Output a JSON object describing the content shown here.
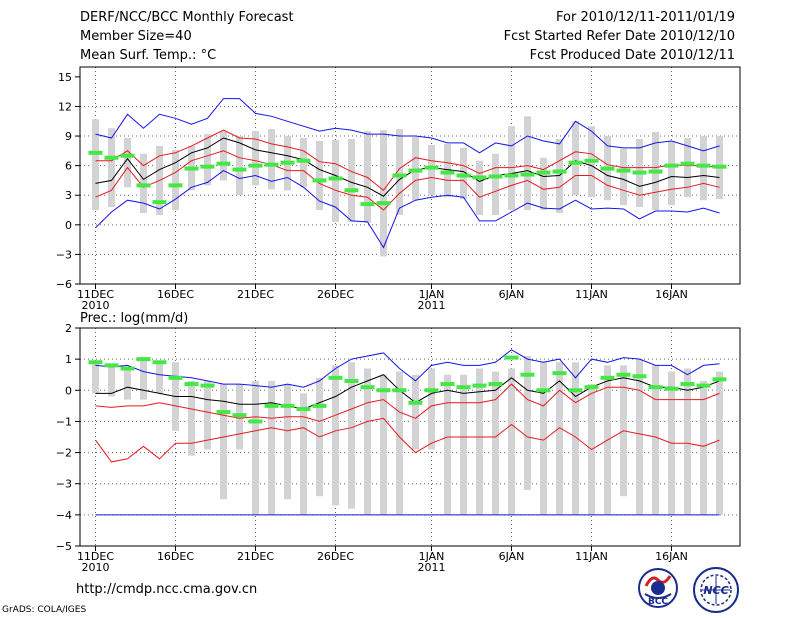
{
  "header": {
    "title": "DERF/NCC/BCC Monthly Forecast",
    "member": "Member Size=40",
    "variable": "Mean Surf. Temp.: °C",
    "period": "For 2010/12/11-2011/01/19",
    "started": "Fcst Started Refer Date 2010/12/10",
    "produced": "Fcst Produced Date 2010/12/11"
  },
  "footer": {
    "url": "http://cmdp.ncc.cma.gov.cn",
    "grads": "GrADS: COLA/IGES"
  },
  "logos": {
    "bcc": "BCC",
    "ncc": "NCC"
  },
  "colors": {
    "box": "#d3d3d5",
    "mean": "#000000",
    "inner": "#e8191f",
    "outer": "#1414e6",
    "obs": "#44e844",
    "grid": "#666666"
  },
  "chart_data": [
    {
      "type": "line",
      "name": "temperature",
      "title": "Mean Surf. Temp.: °C",
      "ylim": [
        -6,
        16
      ],
      "yticks": [
        "−6",
        "−3",
        "0",
        "3",
        "6",
        "9",
        "12",
        "15"
      ],
      "xtick_days": [
        1,
        6,
        11,
        16,
        22,
        27,
        32,
        37
      ],
      "xtick_labels": [
        "11DEC",
        "16DEC",
        "21DEC",
        "26DEC",
        "1JAN",
        "6JAN",
        "11JAN",
        "16JAN"
      ],
      "xtick_years": [
        "2010",
        "",
        "",
        "",
        "2011",
        "",
        "",
        ""
      ],
      "days": [
        1,
        2,
        3,
        4,
        5,
        6,
        7,
        8,
        9,
        10,
        11,
        12,
        13,
        14,
        15,
        16,
        17,
        18,
        19,
        20,
        21,
        22,
        23,
        24,
        25,
        26,
        27,
        28,
        29,
        30,
        31,
        32,
        33,
        34,
        35,
        36,
        37,
        38,
        39,
        40
      ],
      "box_low": [
        1.5,
        1.8,
        3.8,
        1.2,
        1.0,
        1.5,
        3.5,
        4.0,
        4.5,
        3.0,
        4.0,
        3.6,
        3.5,
        3.8,
        1.5,
        0.3,
        0.3,
        0.2,
        -3.2,
        1.0,
        2.5,
        3.0,
        2.8,
        2.6,
        1.0,
        1.0,
        1.5,
        1.5,
        1.5,
        1.2,
        3.0,
        2.8,
        2.5,
        2.0,
        1.8,
        1.5,
        2.0,
        2.8,
        2.5,
        2.6
      ],
      "box_high": [
        10.7,
        9.8,
        8.8,
        7.2,
        8.0,
        7.6,
        8.0,
        9.2,
        9.5,
        9.0,
        9.5,
        9.7,
        9.0,
        8.8,
        8.5,
        8.6,
        8.7,
        9.5,
        9.6,
        9.7,
        8.9,
        8.1,
        8.2,
        7.8,
        6.5,
        7.2,
        10.0,
        11.0,
        6.8,
        8.7,
        10.5,
        10.0,
        9.0,
        7.7,
        8.7,
        9.4,
        8.5,
        8.8,
        9.0,
        9.0
      ],
      "obs": [
        7.3,
        6.8,
        7.0,
        4.0,
        2.3,
        4.0,
        5.7,
        5.9,
        6.2,
        5.6,
        6.0,
        6.1,
        6.3,
        6.5,
        4.5,
        4.7,
        3.5,
        2.1,
        2.2,
        5.0,
        5.5,
        5.8,
        5.3,
        5.0,
        4.8,
        4.9,
        5.0,
        5.1,
        5.3,
        5.4,
        6.3,
        6.5,
        5.7,
        5.5,
        5.3,
        5.4,
        6.0,
        6.2,
        6.0,
        5.9
      ],
      "series": [
        {
          "name": "max",
          "color": "#1414e6",
          "values": [
            9.2,
            8.8,
            11.2,
            9.8,
            11.2,
            10.8,
            10.2,
            10.8,
            12.8,
            12.8,
            11.3,
            11.0,
            10.5,
            10.0,
            9.5,
            9.8,
            9.6,
            9.2,
            9.2,
            9.0,
            9.0,
            8.8,
            8.3,
            8.3,
            7.3,
            8.3,
            8.0,
            9.0,
            8.5,
            8.2,
            10.5,
            9.5,
            8.0,
            7.8,
            7.8,
            8.3,
            8.5,
            8.0,
            7.5,
            8.0
          ]
        },
        {
          "name": "q_high",
          "color": "#e8191f",
          "values": [
            6.5,
            6.5,
            7.5,
            6.0,
            7.0,
            7.3,
            8.0,
            8.8,
            9.6,
            8.8,
            8.7,
            8.2,
            7.9,
            7.5,
            6.4,
            6.2,
            5.4,
            4.8,
            3.5,
            5.7,
            6.8,
            6.5,
            6.3,
            6.0,
            5.2,
            5.8,
            5.8,
            6.0,
            5.6,
            6.5,
            7.4,
            7.2,
            6.1,
            5.8,
            5.8,
            5.8,
            6.1,
            6.0,
            6.0,
            5.8
          ]
        },
        {
          "name": "mean",
          "color": "#000000",
          "values": [
            4.2,
            4.5,
            6.7,
            4.6,
            5.6,
            6.3,
            7.3,
            7.8,
            8.8,
            8.3,
            7.6,
            7.3,
            7.0,
            6.6,
            5.6,
            5.0,
            4.3,
            3.8,
            2.9,
            4.6,
            5.6,
            5.8,
            5.6,
            5.4,
            4.4,
            5.0,
            5.2,
            5.5,
            4.9,
            5.0,
            6.5,
            6.0,
            5.0,
            4.6,
            3.9,
            4.3,
            4.9,
            4.8,
            5.0,
            4.8
          ]
        },
        {
          "name": "q_low",
          "color": "#e8191f",
          "values": [
            2.8,
            3.5,
            5.8,
            3.8,
            4.5,
            5.3,
            6.5,
            7.0,
            7.5,
            6.8,
            6.5,
            6.1,
            5.5,
            5.5,
            4.2,
            3.5,
            3.0,
            2.8,
            1.5,
            3.2,
            4.5,
            4.8,
            4.5,
            4.5,
            2.8,
            3.4,
            4.0,
            4.5,
            3.6,
            3.8,
            5.0,
            5.0,
            4.0,
            3.5,
            3.0,
            3.3,
            3.6,
            3.8,
            4.2,
            3.8
          ]
        },
        {
          "name": "min",
          "color": "#1414e6",
          "values": [
            -0.3,
            1.3,
            2.5,
            2.2,
            1.6,
            2.6,
            3.8,
            4.3,
            5.5,
            4.7,
            5.0,
            4.4,
            4.8,
            3.8,
            2.4,
            1.8,
            0.4,
            0.3,
            -2.3,
            1.7,
            2.5,
            2.8,
            3.0,
            2.8,
            0.4,
            0.4,
            1.3,
            2.2,
            1.7,
            1.6,
            2.5,
            1.6,
            1.7,
            1.6,
            0.6,
            1.4,
            1.4,
            1.3,
            1.7,
            1.2
          ]
        }
      ]
    },
    {
      "type": "line",
      "name": "precipitation",
      "title": "Prec.: log(mm/d)",
      "ylim": [
        -5,
        2
      ],
      "yticks": [
        "−5",
        "−4",
        "−3",
        "−2",
        "−1",
        "0",
        "1",
        "2"
      ],
      "xtick_days": [
        1,
        6,
        11,
        16,
        22,
        27,
        32,
        37
      ],
      "xtick_labels": [
        "11DEC",
        "16DEC",
        "21DEC",
        "26DEC",
        "1JAN",
        "6JAN",
        "11JAN",
        "16JAN"
      ],
      "xtick_years": [
        "2010",
        "",
        "",
        "",
        "2011",
        "",
        "",
        ""
      ],
      "days": [
        1,
        2,
        3,
        4,
        5,
        6,
        7,
        8,
        9,
        10,
        11,
        12,
        13,
        14,
        15,
        16,
        17,
        18,
        19,
        20,
        21,
        22,
        23,
        24,
        25,
        26,
        27,
        28,
        29,
        30,
        31,
        32,
        33,
        34,
        35,
        36,
        37,
        38,
        39,
        40
      ],
      "box_low": [
        -0.1,
        -0.2,
        -0.3,
        -0.3,
        -0.1,
        -1.3,
        -2.1,
        -1.9,
        -3.5,
        -1.9,
        -4.0,
        -4.0,
        -3.5,
        -4.0,
        -3.4,
        -3.7,
        -3.8,
        -4.0,
        -4.0,
        -4.0,
        -1.9,
        -1.9,
        -4.0,
        -4.0,
        -4.0,
        -4.0,
        -4.0,
        -3.2,
        -4.0,
        -4.0,
        -4.0,
        -4.0,
        -4.0,
        -3.4,
        -4.0,
        -4.0,
        -4.0,
        -4.0,
        -4.0,
        -4.0
      ],
      "box_high": [
        0.9,
        0.8,
        0.7,
        1.0,
        0.9,
        0.9,
        0.3,
        0.3,
        0.2,
        0.2,
        0.3,
        0.3,
        0.2,
        -0.1,
        0.4,
        0.8,
        0.9,
        0.7,
        0.5,
        0.6,
        0.5,
        0.7,
        0.5,
        0.5,
        0.7,
        0.6,
        0.7,
        1.1,
        0.9,
        0.9,
        0.9,
        0.2,
        0.8,
        0.8,
        1.0,
        0.8,
        0.6,
        0.7,
        0.3,
        0.6
      ],
      "obs": [
        0.9,
        0.8,
        0.7,
        1.0,
        0.9,
        0.4,
        0.2,
        0.15,
        -0.7,
        -0.8,
        -1.0,
        -0.5,
        -0.5,
        -0.6,
        -0.5,
        0.4,
        0.3,
        0.1,
        0.0,
        0.0,
        -0.4,
        0.0,
        0.2,
        0.1,
        0.15,
        0.2,
        1.05,
        0.5,
        0.0,
        0.55,
        0.0,
        0.1,
        0.4,
        0.5,
        0.45,
        0.1,
        0.05,
        0.2,
        0.15,
        0.35
      ],
      "series": [
        {
          "name": "max",
          "color": "#1414e6",
          "values": [
            0.8,
            0.75,
            0.8,
            0.6,
            0.5,
            0.45,
            0.4,
            0.3,
            0.2,
            0.2,
            0.15,
            0.1,
            0.2,
            0.1,
            0.3,
            0.7,
            1.0,
            1.1,
            1.2,
            0.7,
            0.3,
            0.8,
            0.9,
            0.8,
            0.8,
            0.9,
            1.3,
            1.0,
            0.9,
            1.0,
            0.4,
            1.0,
            0.9,
            1.05,
            1.0,
            0.8,
            0.8,
            0.5,
            0.8,
            0.85
          ]
        },
        {
          "name": "mean",
          "color": "#000000",
          "values": [
            -0.1,
            -0.1,
            0.1,
            0.0,
            -0.1,
            -0.2,
            -0.2,
            -0.3,
            -0.35,
            -0.45,
            -0.45,
            -0.4,
            -0.5,
            -0.6,
            -0.4,
            -0.2,
            0.1,
            0.3,
            0.5,
            0.0,
            -0.4,
            -0.1,
            0.0,
            -0.1,
            -0.05,
            0.0,
            0.4,
            0.0,
            -0.1,
            0.3,
            -0.2,
            0.1,
            0.3,
            0.4,
            0.3,
            0.1,
            0.1,
            0.0,
            0.1,
            0.3
          ]
        },
        {
          "name": "q_high",
          "color": "#e8191f",
          "values": [
            -0.5,
            -0.55,
            -0.5,
            -0.5,
            -0.4,
            -0.5,
            -0.6,
            -0.7,
            -0.8,
            -0.9,
            -0.85,
            -0.9,
            -0.85,
            -0.85,
            -1.0,
            -0.8,
            -0.6,
            -0.4,
            -0.3,
            -0.7,
            -0.9,
            -0.5,
            -0.4,
            -0.4,
            -0.4,
            -0.3,
            0.2,
            -0.3,
            -0.5,
            0.0,
            -0.4,
            -0.1,
            0.1,
            0.1,
            0.0,
            -0.3,
            -0.3,
            -0.3,
            -0.3,
            -0.1
          ]
        },
        {
          "name": "q_low",
          "color": "#e8191f",
          "values": [
            -1.6,
            -2.3,
            -2.2,
            -1.8,
            -2.2,
            -1.7,
            -1.7,
            -1.6,
            -1.5,
            -1.4,
            -1.3,
            -1.2,
            -1.3,
            -1.2,
            -1.5,
            -1.3,
            -1.2,
            -1.0,
            -0.9,
            -1.5,
            -2.0,
            -1.7,
            -1.5,
            -1.5,
            -1.5,
            -1.5,
            -1.1,
            -1.5,
            -1.6,
            -1.2,
            -1.5,
            -1.9,
            -1.6,
            -1.3,
            -1.4,
            -1.5,
            -1.7,
            -1.7,
            -1.8,
            -1.6
          ]
        },
        {
          "name": "min",
          "color": "#1414e6",
          "values": [
            -4.0,
            -4.0,
            -4.0,
            -4.0,
            -4.0,
            -4.0,
            -4.0,
            -4.0,
            -4.0,
            -4.0,
            -4.0,
            -4.0,
            -4.0,
            -4.0,
            -4.0,
            -4.0,
            -4.0,
            -4.0,
            -4.0,
            -4.0,
            -4.0,
            -4.0,
            -4.0,
            -4.0,
            -4.0,
            -4.0,
            -4.0,
            -4.0,
            -4.0,
            -4.0,
            -4.0,
            -4.0,
            -4.0,
            -4.0,
            -4.0,
            -4.0,
            -4.0,
            -4.0,
            -4.0,
            -4.0
          ]
        }
      ]
    }
  ]
}
